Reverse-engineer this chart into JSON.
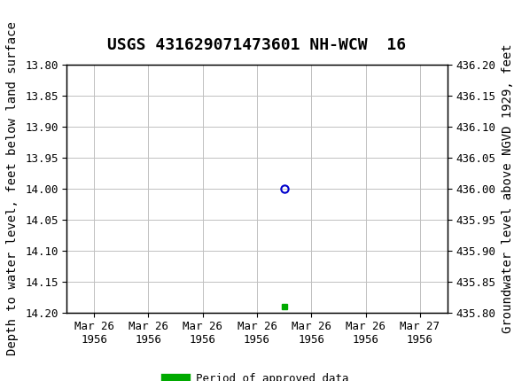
{
  "title": "USGS 431629071473601 NH-WCW  16",
  "ylabel_left": "Depth to water level, feet below land surface",
  "ylabel_right": "Groundwater level above NGVD 1929, feet",
  "ylim_left": [
    14.2,
    13.8
  ],
  "ylim_right": [
    435.8,
    436.2
  ],
  "yticks_left": [
    13.8,
    13.85,
    13.9,
    13.95,
    14.0,
    14.05,
    14.1,
    14.15,
    14.2
  ],
  "yticks_right": [
    436.2,
    436.15,
    436.1,
    436.05,
    436.0,
    435.95,
    435.9,
    435.85,
    435.8
  ],
  "data_point_x": 3.5,
  "data_point_y": 14.0,
  "green_marker_x": 3.5,
  "green_marker_y": 14.19,
  "x_tick_labels": [
    "Mar 26\n1956",
    "Mar 26\n1956",
    "Mar 26\n1956",
    "Mar 26\n1956",
    "Mar 26\n1956",
    "Mar 26\n1956",
    "Mar 27\n1956"
  ],
  "xtick_positions": [
    0,
    1,
    2,
    3,
    4,
    5,
    6
  ],
  "xlim": [
    -0.5,
    6.5
  ],
  "bg_color": "#ffffff",
  "plot_bg_color": "#ffffff",
  "grid_color": "#c0c0c0",
  "header_color": "#1a6b3c",
  "circle_color": "#0000cc",
  "green_color": "#00aa00",
  "legend_label": "Period of approved data",
  "font_family": "monospace",
  "title_fontsize": 13,
  "axis_label_fontsize": 10,
  "tick_fontsize": 9
}
